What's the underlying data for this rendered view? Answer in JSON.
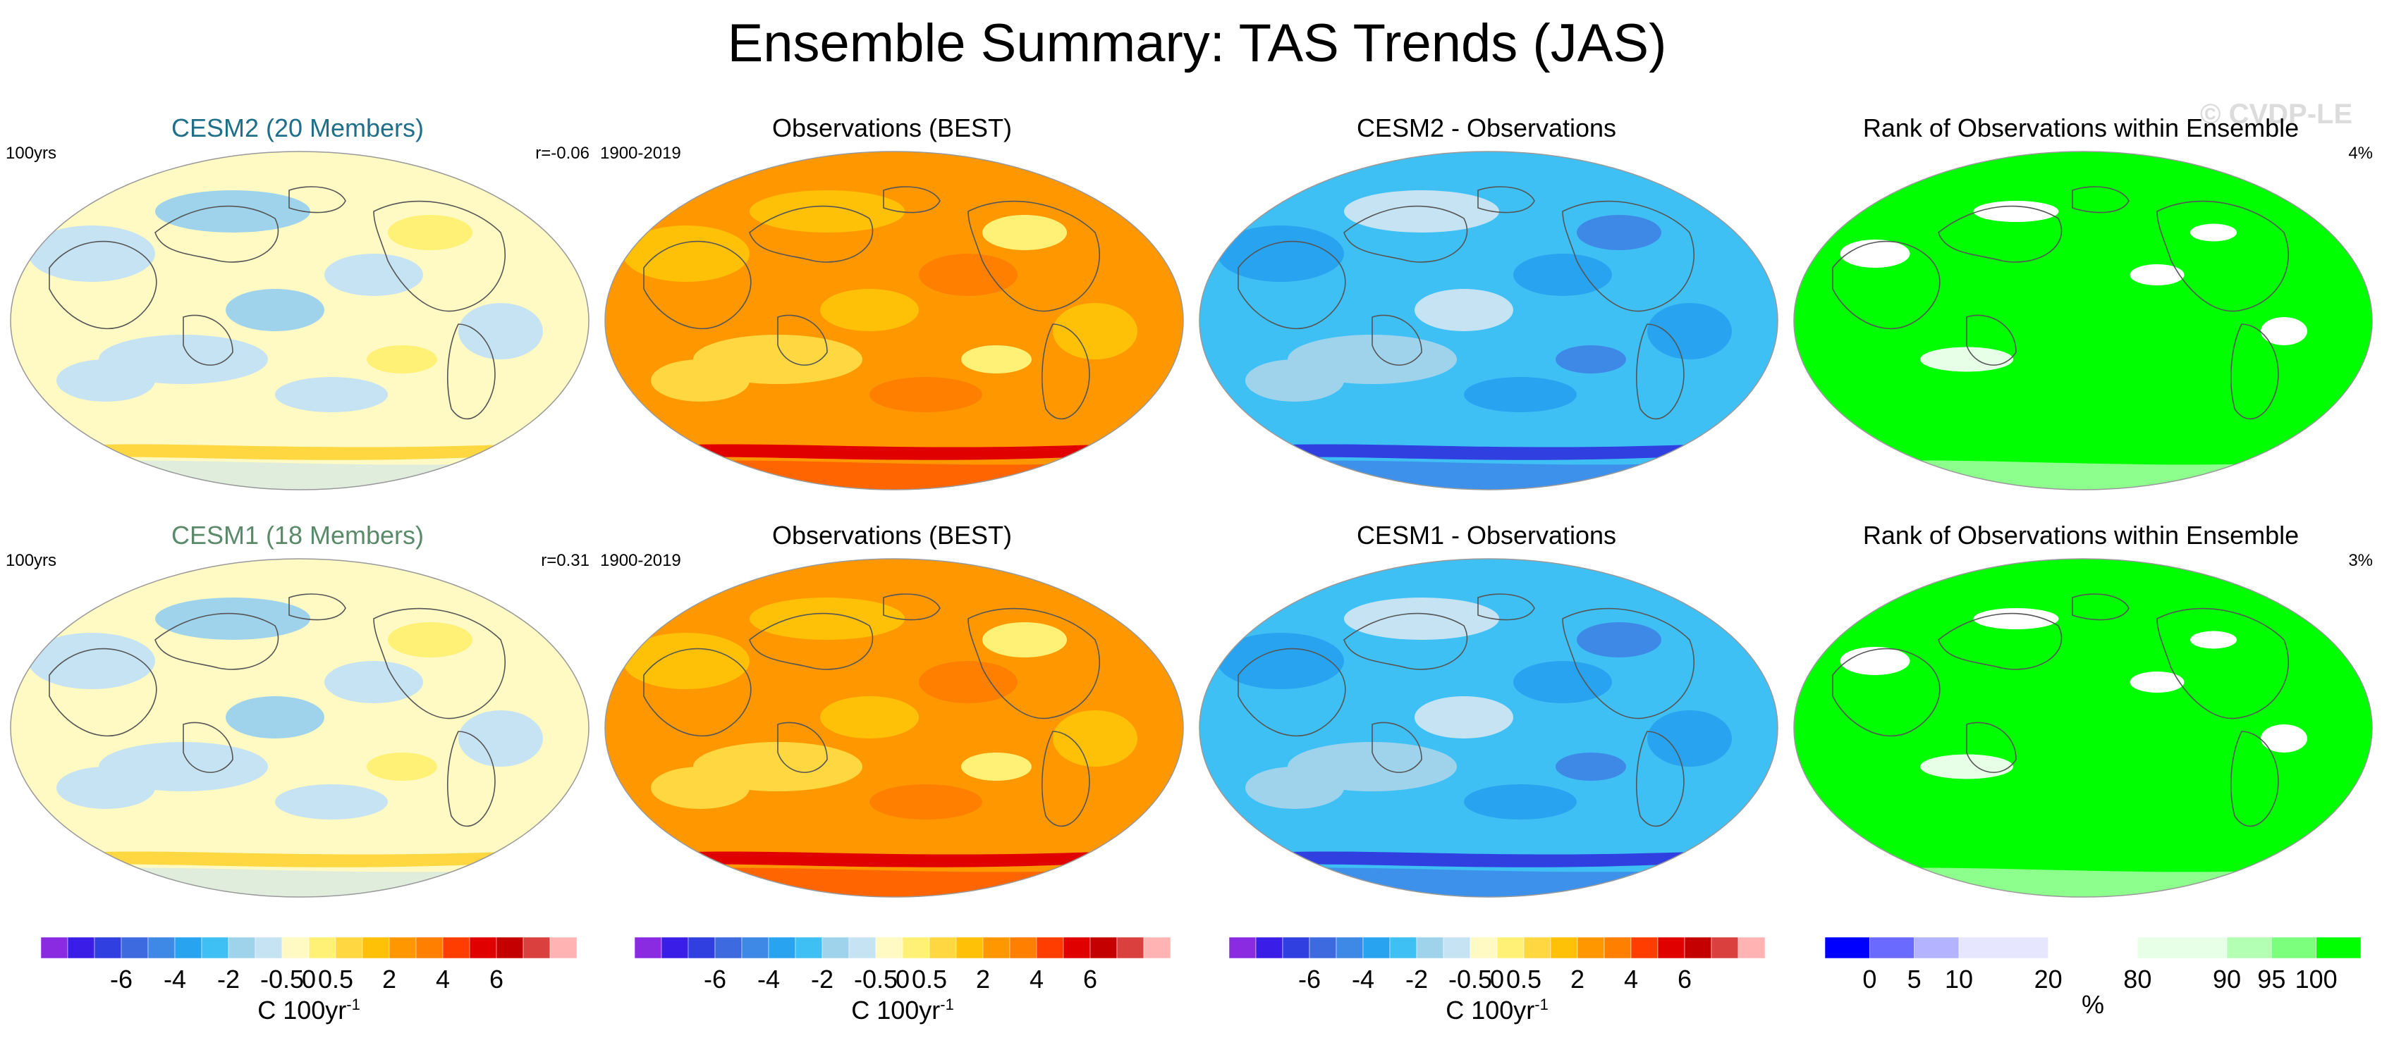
{
  "title": "Ensemble Summary: TAS Trends (JAS)",
  "watermark": "© CVDP-LE",
  "panels": [
    {
      "title": "CESM2 (20 Members)",
      "title_color": "#1f6f8b",
      "left": "100yrs",
      "right": "r=-0.06",
      "map": "model"
    },
    {
      "title": "Observations (BEST)",
      "title_color": "#000000",
      "left": "1900-2019",
      "right": "",
      "map": "obs"
    },
    {
      "title": "CESM2 - Observations",
      "title_color": "#000000",
      "left": "",
      "right": "",
      "map": "diff"
    },
    {
      "title": "Rank of Observations within Ensemble",
      "title_color": "#000000",
      "left": "",
      "right": "4%",
      "map": "rank"
    },
    {
      "title": "CESM1 (18 Members)",
      "title_color": "#5a8a6a",
      "left": "100yrs",
      "right": "r=0.31",
      "map": "model"
    },
    {
      "title": "Observations (BEST)",
      "title_color": "#000000",
      "left": "1900-2019",
      "right": "",
      "map": "obs"
    },
    {
      "title": "CESM1 - Observations",
      "title_color": "#000000",
      "left": "",
      "right": "",
      "map": "diff"
    },
    {
      "title": "Rank of Observations within Ensemble",
      "title_color": "#000000",
      "left": "",
      "right": "3%",
      "map": "rank"
    }
  ],
  "colorbars": {
    "trend": {
      "colors": [
        "#8a2be2",
        "#3a1ee8",
        "#2f3fe0",
        "#3e6ae0",
        "#3f89e6",
        "#27a3f0",
        "#3fc0f5",
        "#9fd3ec",
        "#c6e3f3",
        "#fff9c4",
        "#fff176",
        "#ffd740",
        "#ffc107",
        "#ff9800",
        "#ff7f00",
        "#ff3d00",
        "#e00000",
        "#c40000",
        "#d9403e",
        "#ffb3b3"
      ],
      "ticks": [
        "-6",
        "-4",
        "-2",
        "-0.5",
        "0",
        "0.5",
        "2",
        "4",
        "6"
      ],
      "tick_positions": [
        2.5,
        4.5,
        6.5,
        8.5,
        9.5,
        10.5,
        12.5,
        14.5,
        16.5
      ],
      "units": "C 100yr",
      "units_sup": "-1"
    },
    "rank": {
      "colors": [
        "#0000ff",
        "#6a6aff",
        "#b3b3ff",
        "#e6e6ff",
        "#ffffff",
        "#e6ffe6",
        "#b3ffb3",
        "#7cff7c",
        "#00ff00"
      ],
      "widths": [
        1,
        1,
        1,
        2,
        2,
        2,
        1,
        1,
        1
      ],
      "ticks": [
        "0",
        "5",
        "10",
        "20",
        "80",
        "90",
        "95",
        "100"
      ],
      "units": "%",
      "units_sup": ""
    }
  },
  "chart_data": [
    {
      "type": "heatmap",
      "title": "CESM2 (20 Members)",
      "subtitle_left": "100yrs",
      "subtitle_right": "r=-0.06",
      "colorbar": "C 100yr-1",
      "levels": [
        -6,
        -4,
        -2,
        -0.5,
        0,
        0.5,
        2,
        4,
        6
      ]
    },
    {
      "type": "heatmap",
      "title": "Observations (BEST)",
      "subtitle_left": "1900-2019",
      "colorbar": "C 100yr-1",
      "levels": [
        -6,
        -4,
        -2,
        -0.5,
        0,
        0.5,
        2,
        4,
        6
      ]
    },
    {
      "type": "heatmap",
      "title": "CESM2 - Observations",
      "colorbar": "C 100yr-1",
      "levels": [
        -6,
        -4,
        -2,
        -0.5,
        0,
        0.5,
        2,
        4,
        6
      ]
    },
    {
      "type": "heatmap",
      "title": "Rank of Observations within Ensemble",
      "subtitle_right": "4%",
      "colorbar": "%",
      "levels": [
        0,
        5,
        10,
        20,
        80,
        90,
        95,
        100
      ]
    },
    {
      "type": "heatmap",
      "title": "CESM1 (18 Members)",
      "subtitle_left": "100yrs",
      "subtitle_right": "r=0.31",
      "colorbar": "C 100yr-1",
      "levels": [
        -6,
        -4,
        -2,
        -0.5,
        0,
        0.5,
        2,
        4,
        6
      ]
    },
    {
      "type": "heatmap",
      "title": "Observations (BEST)",
      "subtitle_left": "1900-2019",
      "colorbar": "C 100yr-1",
      "levels": [
        -6,
        -4,
        -2,
        -0.5,
        0,
        0.5,
        2,
        4,
        6
      ]
    },
    {
      "type": "heatmap",
      "title": "CESM1 - Observations",
      "colorbar": "C 100yr-1",
      "levels": [
        -6,
        -4,
        -2,
        -0.5,
        0,
        0.5,
        2,
        4,
        6
      ]
    },
    {
      "type": "heatmap",
      "title": "Rank of Observations within Ensemble",
      "subtitle_right": "3%",
      "colorbar": "%",
      "levels": [
        0,
        5,
        10,
        20,
        80,
        90,
        95,
        100
      ]
    }
  ]
}
